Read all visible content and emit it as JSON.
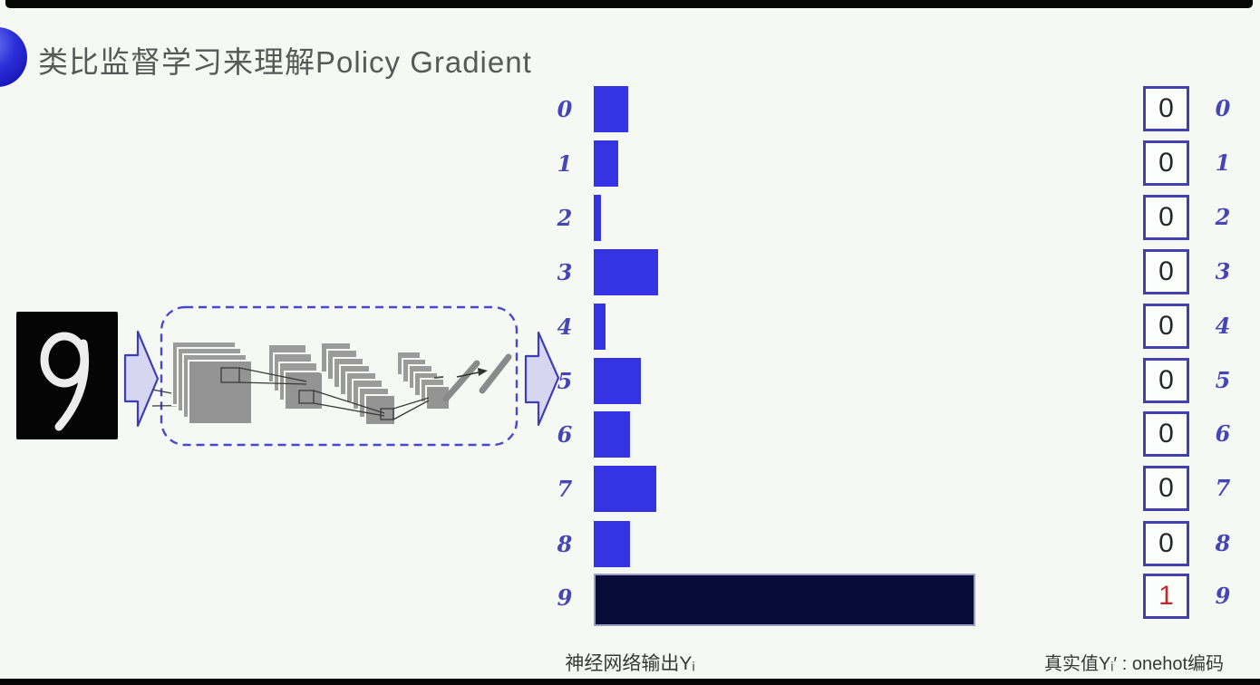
{
  "title": {
    "text": "类比监督学习来理解Policy Gradient"
  },
  "decor": {
    "bullet_color": "#2b2fd8",
    "frame_color": "#060606",
    "background": "#f6f9f3"
  },
  "input_image": {
    "digit": "9",
    "bg": "#050505",
    "stroke_color": "#ededed"
  },
  "cnn": {
    "box_border": "#4848cc",
    "layer_fill": "#9b9b9b"
  },
  "arrows": {
    "fill": "#d6d6f1",
    "stroke": "#3d3db5"
  },
  "chart_data": [
    {
      "type": "bar",
      "orientation": "horizontal",
      "title": "神经网络输出Yᵢ",
      "xlabel": "",
      "ylabel": "",
      "categories": [
        "0",
        "1",
        "2",
        "3",
        "4",
        "5",
        "6",
        "7",
        "8",
        "9"
      ],
      "values": [
        0.09,
        0.065,
        0.02,
        0.17,
        0.03,
        0.125,
        0.095,
        0.165,
        0.095,
        1.0
      ],
      "xlim": [
        0,
        1
      ],
      "grid": false,
      "bar_color": "#3434e2",
      "highlight_index": 9,
      "highlight_color": "#070b38",
      "highlight_border": "#9aa0c0",
      "label_color": "#4545b6"
    },
    {
      "type": "table",
      "title": "真实值Yᵢ′ : onehot编码",
      "categories": [
        "0",
        "1",
        "2",
        "3",
        "4",
        "5",
        "6",
        "7",
        "8",
        "9"
      ],
      "values": [
        "0",
        "0",
        "0",
        "0",
        "0",
        "0",
        "0",
        "0",
        "0",
        "1"
      ],
      "highlight_index": 9,
      "value_color": "#27272b",
      "highlight_value_color": "#c3272b",
      "box_border_color": "#4140ae"
    }
  ]
}
